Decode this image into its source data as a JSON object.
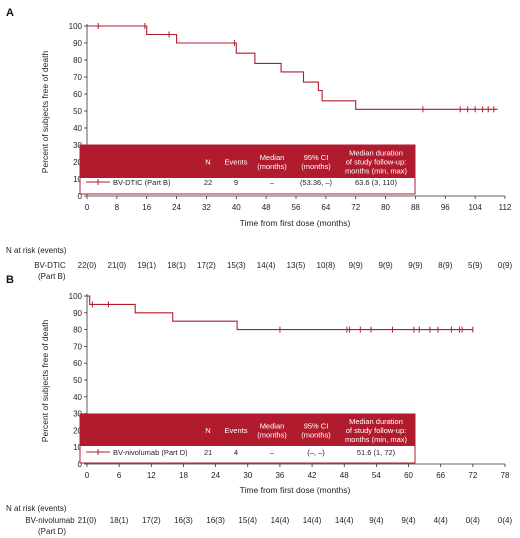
{
  "chart_data": [
    {
      "type": "line",
      "panel": "A",
      "xlabel": "Time from first dose (months)",
      "ylabel": "Percent of subjects free of death",
      "xlim": [
        0,
        112
      ],
      "ylim": [
        0,
        100
      ],
      "xticks": [
        0,
        8,
        16,
        24,
        32,
        40,
        48,
        56,
        64,
        72,
        80,
        88,
        96,
        104,
        112
      ],
      "yticks": [
        0,
        10,
        20,
        30,
        40,
        50,
        60,
        70,
        80,
        90,
        100
      ],
      "series": [
        {
          "name": "BV-DTIC (Part B)",
          "color": "#b01c2e",
          "steps": [
            [
              0,
              100
            ],
            [
              16,
              100
            ],
            [
              16,
              95
            ],
            [
              24,
              95
            ],
            [
              24,
              90
            ],
            [
              40,
              90
            ],
            [
              40,
              84
            ],
            [
              45,
              84
            ],
            [
              45,
              78
            ],
            [
              52,
              78
            ],
            [
              52,
              73
            ],
            [
              58,
              73
            ],
            [
              58,
              67
            ],
            [
              62,
              67
            ],
            [
              62,
              62
            ],
            [
              63,
              62
            ],
            [
              63,
              56
            ],
            [
              72,
              56
            ],
            [
              72,
              51
            ],
            [
              110,
              51
            ]
          ],
          "censored": [
            [
              3,
              100
            ],
            [
              15.5,
              100
            ],
            [
              22,
              95
            ],
            [
              39.5,
              90
            ],
            [
              90,
              51
            ],
            [
              100,
              51
            ],
            [
              102,
              51
            ],
            [
              104,
              51
            ],
            [
              106,
              51
            ],
            [
              107.5,
              51
            ],
            [
              109,
              51
            ]
          ]
        }
      ],
      "table": {
        "headers": [
          "N",
          "Events",
          "Median (months)",
          "95% CI (months)",
          "Median duration of study follow-up: months (min, max)"
        ],
        "row": [
          "BV-DTIC (Part B)",
          "22",
          "9",
          "–",
          "(53.36, –)",
          "63.6 (3, 110)"
        ]
      },
      "risk_table": {
        "title": "N at risk (events)",
        "label": "BV-DTIC (Part B)",
        "values": [
          "22(0)",
          "21(0)",
          "19(1)",
          "18(1)",
          "17(2)",
          "15(3)",
          "14(4)",
          "13(5)",
          "10(8)",
          "9(9)",
          "9(9)",
          "9(9)",
          "8(9)",
          "5(9)",
          "0(9)"
        ]
      }
    },
    {
      "type": "line",
      "panel": "B",
      "xlabel": "Time from first dose (months)",
      "ylabel": "Percent of subjects free of death",
      "xlim": [
        0,
        78
      ],
      "ylim": [
        0,
        100
      ],
      "xticks": [
        0,
        6,
        12,
        18,
        24,
        30,
        36,
        42,
        48,
        54,
        60,
        66,
        72,
        78
      ],
      "yticks": [
        0,
        10,
        20,
        30,
        40,
        50,
        60,
        70,
        80,
        90,
        100
      ],
      "series": [
        {
          "name": "BV-nivolumab (Part D)",
          "color": "#b01c2e",
          "steps": [
            [
              0,
              100
            ],
            [
              0.5,
              100
            ],
            [
              0.5,
              95
            ],
            [
              9,
              95
            ],
            [
              9,
              90
            ],
            [
              16,
              90
            ],
            [
              16,
              85
            ],
            [
              28,
              85
            ],
            [
              28,
              80
            ],
            [
              72,
              80
            ]
          ],
          "censored": [
            [
              1,
              95
            ],
            [
              4,
              95
            ],
            [
              36,
              80
            ],
            [
              48.5,
              80
            ],
            [
              49,
              80
            ],
            [
              51,
              80
            ],
            [
              53,
              80
            ],
            [
              57,
              80
            ],
            [
              61,
              80
            ],
            [
              62,
              80
            ],
            [
              64,
              80
            ],
            [
              65.5,
              80
            ],
            [
              68,
              80
            ],
            [
              69.5,
              80
            ],
            [
              70,
              80
            ],
            [
              72,
              80
            ]
          ]
        }
      ],
      "table": {
        "headers": [
          "N",
          "Events",
          "Median (months)",
          "95% CI (months)",
          "Median duration of study follow-up: months (min, max)"
        ],
        "row": [
          "BV-nivolumab (Part D)",
          "21",
          "4",
          "–",
          "(–, –)",
          "51.6 (1, 72)"
        ]
      },
      "risk_table": {
        "title": "N at risk (events)",
        "label": "BV-nivolumab (Part D)",
        "values": [
          "21(0)",
          "18(1)",
          "17(2)",
          "16(3)",
          "16(3)",
          "15(4)",
          "14(4)",
          "14(4)",
          "14(4)",
          "9(4)",
          "9(4)",
          "4(4)",
          "0(4)",
          "0(4)"
        ]
      }
    }
  ]
}
